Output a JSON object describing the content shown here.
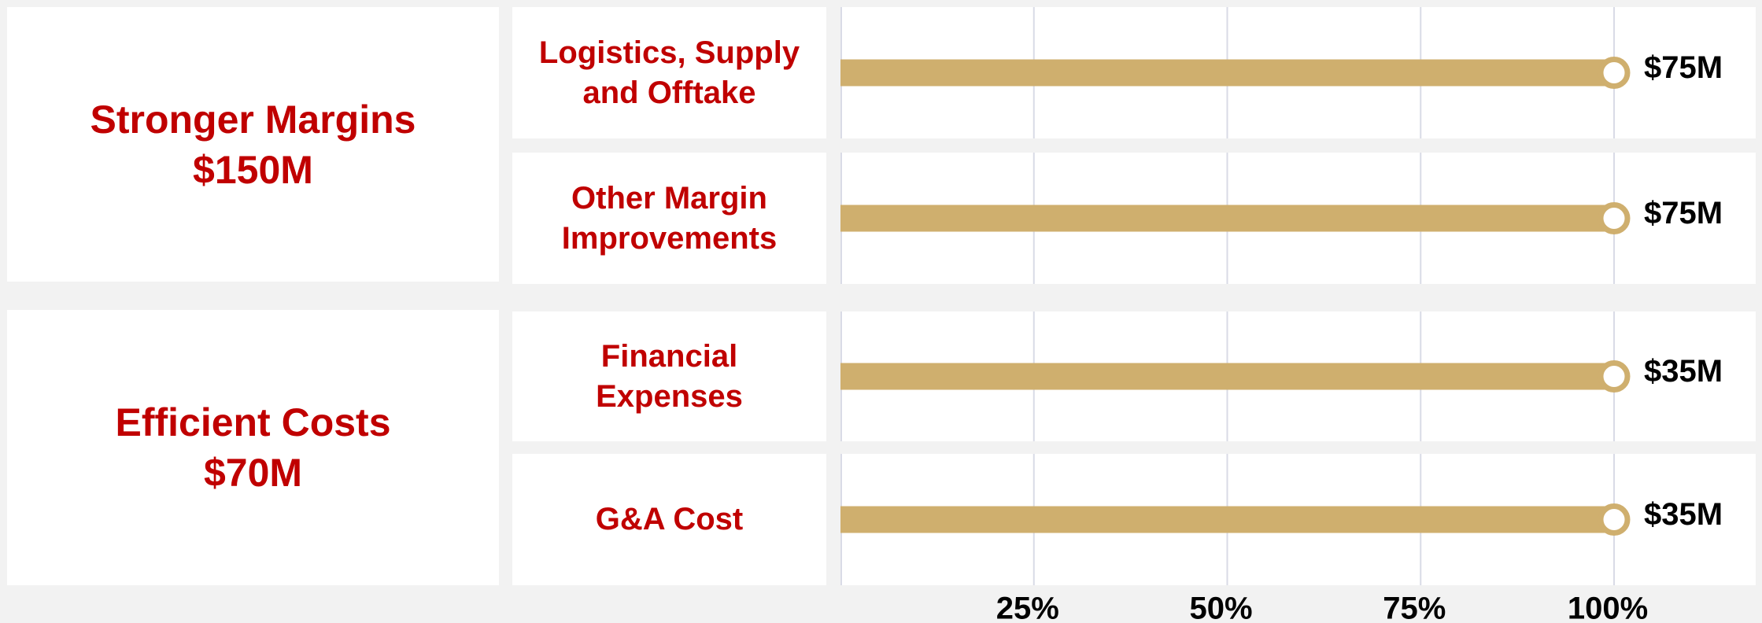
{
  "chart_data": {
    "type": "bar",
    "groups": [
      {
        "title": "Stronger Margins",
        "total": "$150M"
      },
      {
        "title": "Efficient Costs",
        "total": "$70M"
      }
    ],
    "categories": [
      "Logistics, Supply\nand Offtake",
      "Other Margin\nImprovements",
      "Financial\nExpenses",
      "G&A Cost"
    ],
    "values": [
      100,
      100,
      100,
      100
    ],
    "amounts": [
      "$75M",
      "$75M",
      "$35M",
      "$35M"
    ],
    "color": "#cfaf6e",
    "xlim": [
      0,
      100
    ],
    "xticks": [
      {
        "value": 25,
        "label": "25%"
      },
      {
        "value": 50,
        "label": "50%"
      },
      {
        "value": 75,
        "label": "75%"
      },
      {
        "value": 100,
        "label": "100%"
      }
    ],
    "grid": true
  }
}
